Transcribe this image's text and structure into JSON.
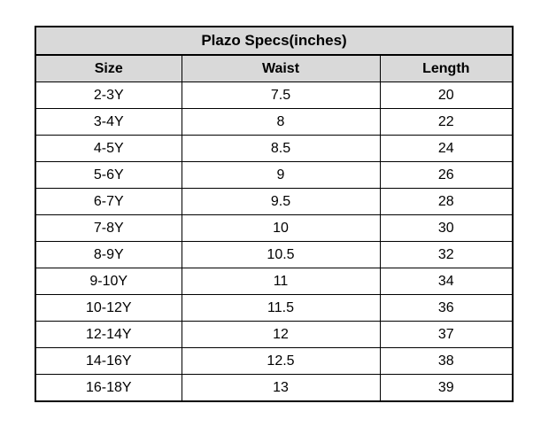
{
  "table": {
    "title": "Plazo Specs(inches)",
    "columns": {
      "size": "Size",
      "waist": "Waist",
      "length": "Length"
    },
    "rows": [
      {
        "size": "2-3Y",
        "waist": "7.5",
        "length": "20"
      },
      {
        "size": "3-4Y",
        "waist": "8",
        "length": "22"
      },
      {
        "size": "4-5Y",
        "waist": "8.5",
        "length": "24"
      },
      {
        "size": "5-6Y",
        "waist": "9",
        "length": "26"
      },
      {
        "size": "6-7Y",
        "waist": "9.5",
        "length": "28"
      },
      {
        "size": "7-8Y",
        "waist": "10",
        "length": "30"
      },
      {
        "size": "8-9Y",
        "waist": "10.5",
        "length": "32"
      },
      {
        "size": "9-10Y",
        "waist": "11",
        "length": "34"
      },
      {
        "size": "10-12Y",
        "waist": "11.5",
        "length": "36"
      },
      {
        "size": "12-14Y",
        "waist": "12",
        "length": "37"
      },
      {
        "size": "14-16Y",
        "waist": "12.5",
        "length": "38"
      },
      {
        "size": "16-18Y",
        "waist": "13",
        "length": "39"
      }
    ]
  },
  "colors": {
    "header_bg": "#d9d9d9",
    "border": "#000000",
    "text": "#000000",
    "page_bg": "#ffffff"
  }
}
